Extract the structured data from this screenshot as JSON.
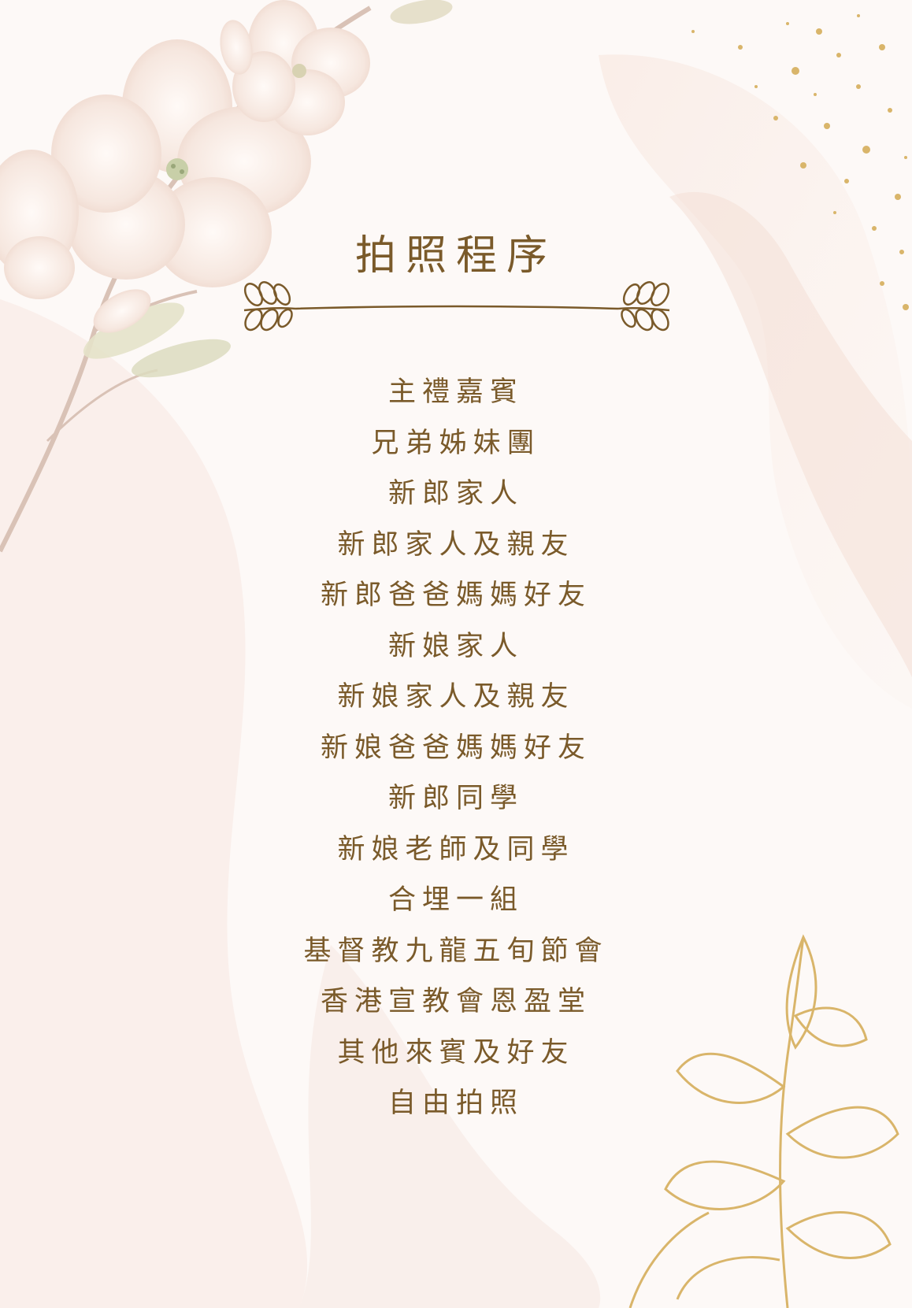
{
  "title": "拍照程序",
  "items": [
    "主禮嘉賓",
    "兄弟姊妹團",
    "新郎家人",
    "新郎家人及親友",
    "新郎爸爸媽媽好友",
    "新娘家人",
    "新娘家人及親友",
    "新娘爸爸媽媽好友",
    "新郎同學",
    "新娘老師及同學",
    "合埋一組",
    "基督教九龍五旬節會",
    "香港宣教會恩盈堂",
    "其他來賓及好友",
    "自由拍照"
  ],
  "colors": {
    "text": "#7a5a2a",
    "background": "#fdf9f7",
    "petal": "#f3e1d8",
    "gold": "#d9b56a"
  },
  "decorations": [
    "blossom-branch",
    "gold-glitter",
    "gold-leaf-sprig",
    "laurel-divider"
  ]
}
